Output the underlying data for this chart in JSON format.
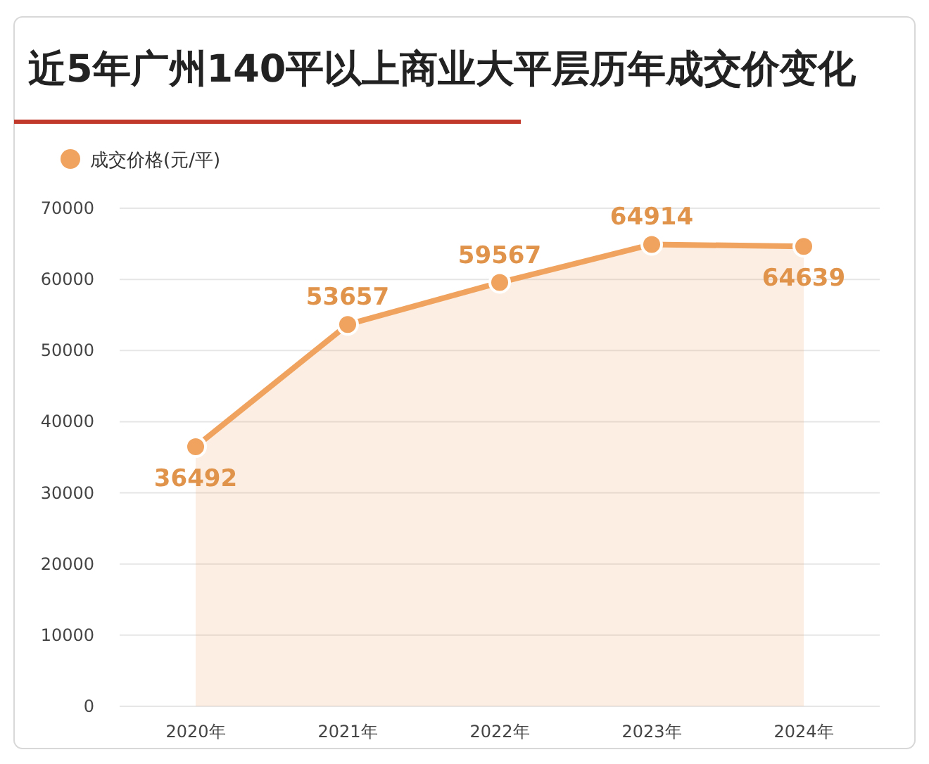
{
  "chart_data": {
    "type": "area",
    "title": "近5年广州140平以上商业大平层历年成交价变化",
    "categories": [
      "2020年",
      "2021年",
      "2022年",
      "2023年",
      "2024年"
    ],
    "series": [
      {
        "name": "成交价格(元/平)",
        "color": "#f0a35e",
        "values": [
          36492,
          53657,
          59567,
          64914,
          64639
        ]
      }
    ],
    "ylim": [
      0,
      70000
    ],
    "yticks": [
      0,
      10000,
      20000,
      30000,
      40000,
      50000,
      60000,
      70000
    ],
    "grid": "y",
    "legend": "top left",
    "marker": "circle",
    "data_labels": true
  }
}
